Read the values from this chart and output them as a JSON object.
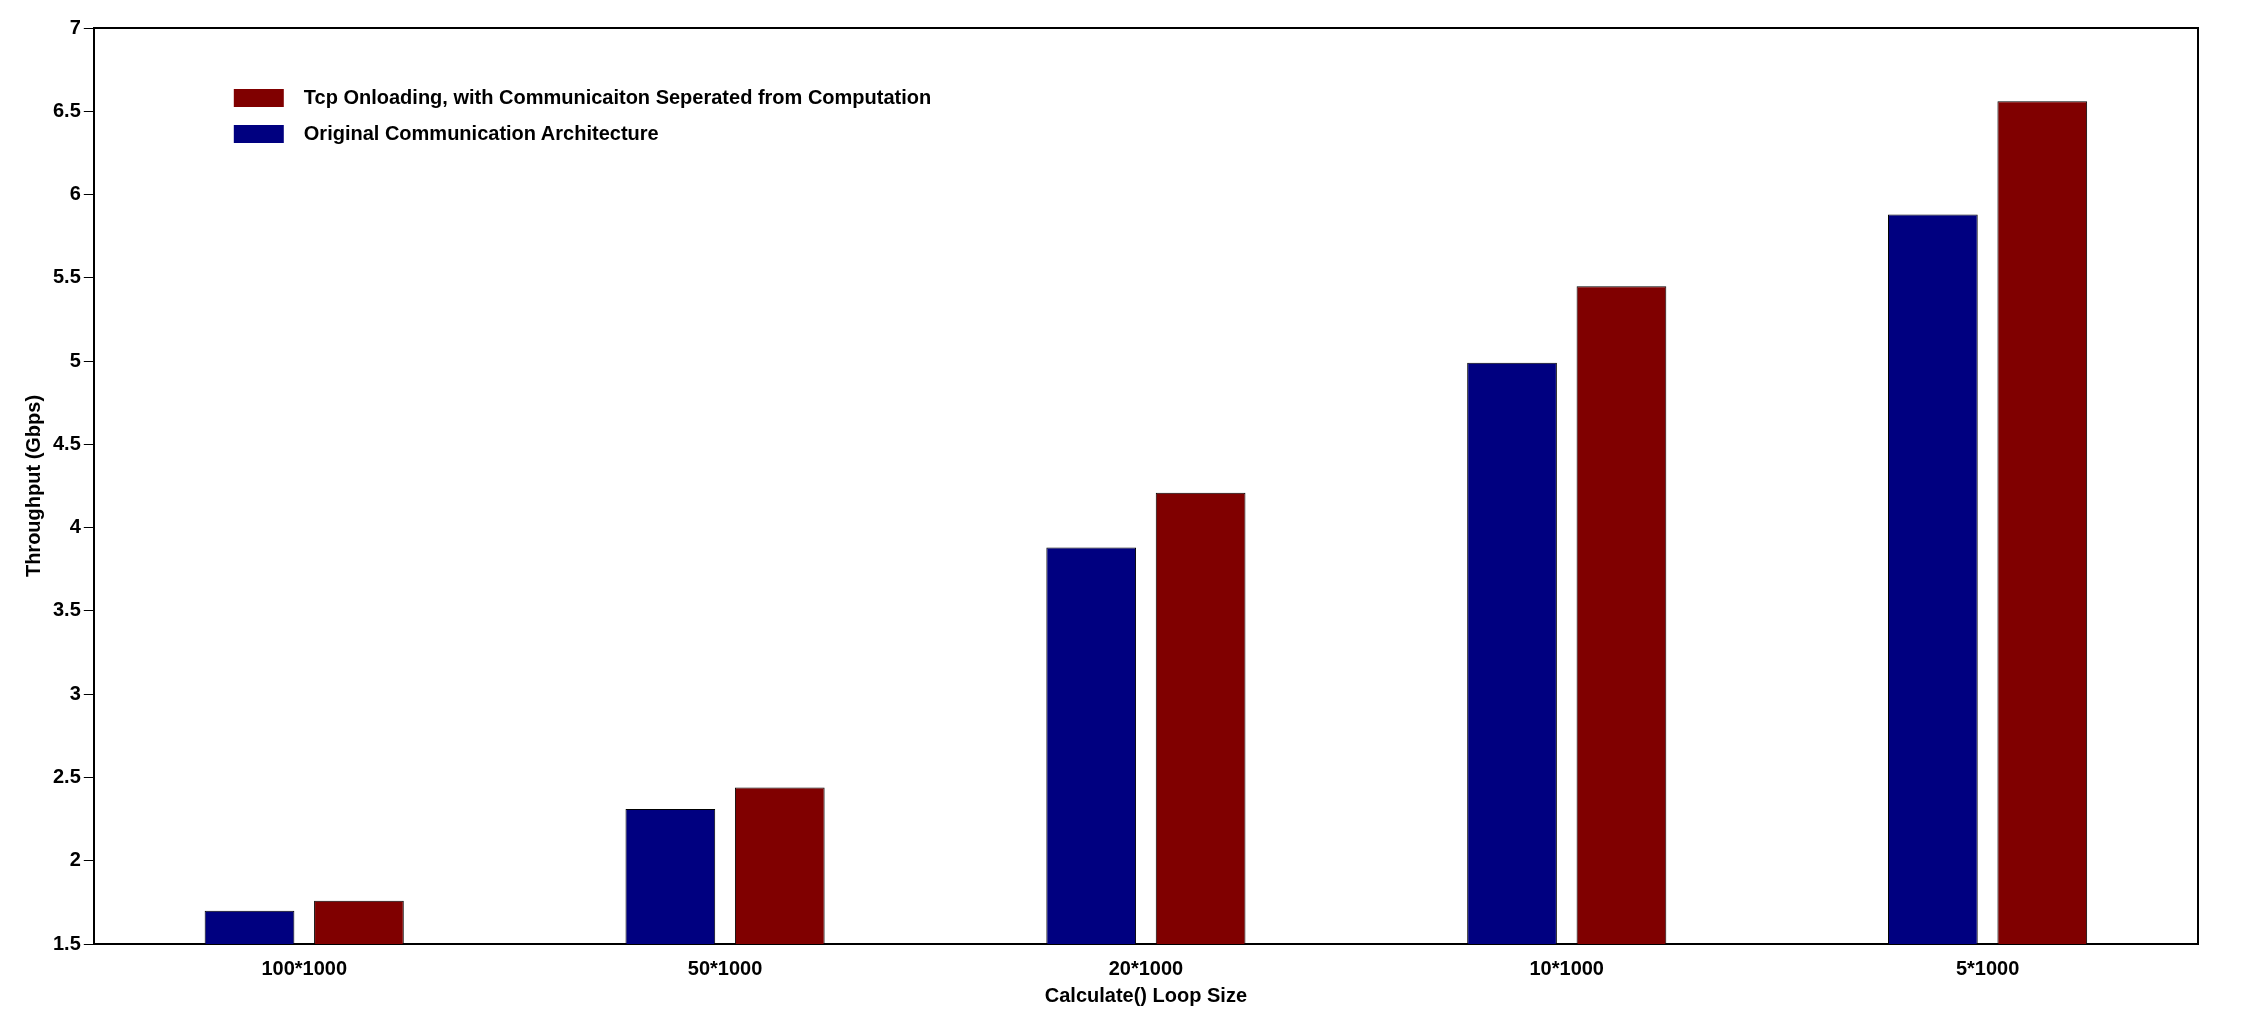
{
  "chart_data": {
    "type": "bar",
    "xlabel": "Calculate() Loop Size",
    "ylabel": "Throughput (Gbps)",
    "categories": [
      "100*1000",
      "50*1000",
      "20*1000",
      "10*1000",
      "5*1000"
    ],
    "series": [
      {
        "name": "Original Communication Architecture",
        "color": "#000080",
        "values": [
          1.7,
          2.31,
          3.88,
          4.99,
          5.88
        ]
      },
      {
        "name": "Tcp Onloading, with Communicaiton Seperated from Computation",
        "color": "#800000",
        "values": [
          1.76,
          2.44,
          4.21,
          5.45,
          6.56
        ]
      }
    ],
    "ylim": [
      1.5,
      7
    ],
    "yticks": [
      1.5,
      2,
      2.5,
      3,
      3.5,
      4,
      4.5,
      5,
      5.5,
      6,
      6.5,
      7
    ],
    "grid": false,
    "legend": "top left"
  }
}
